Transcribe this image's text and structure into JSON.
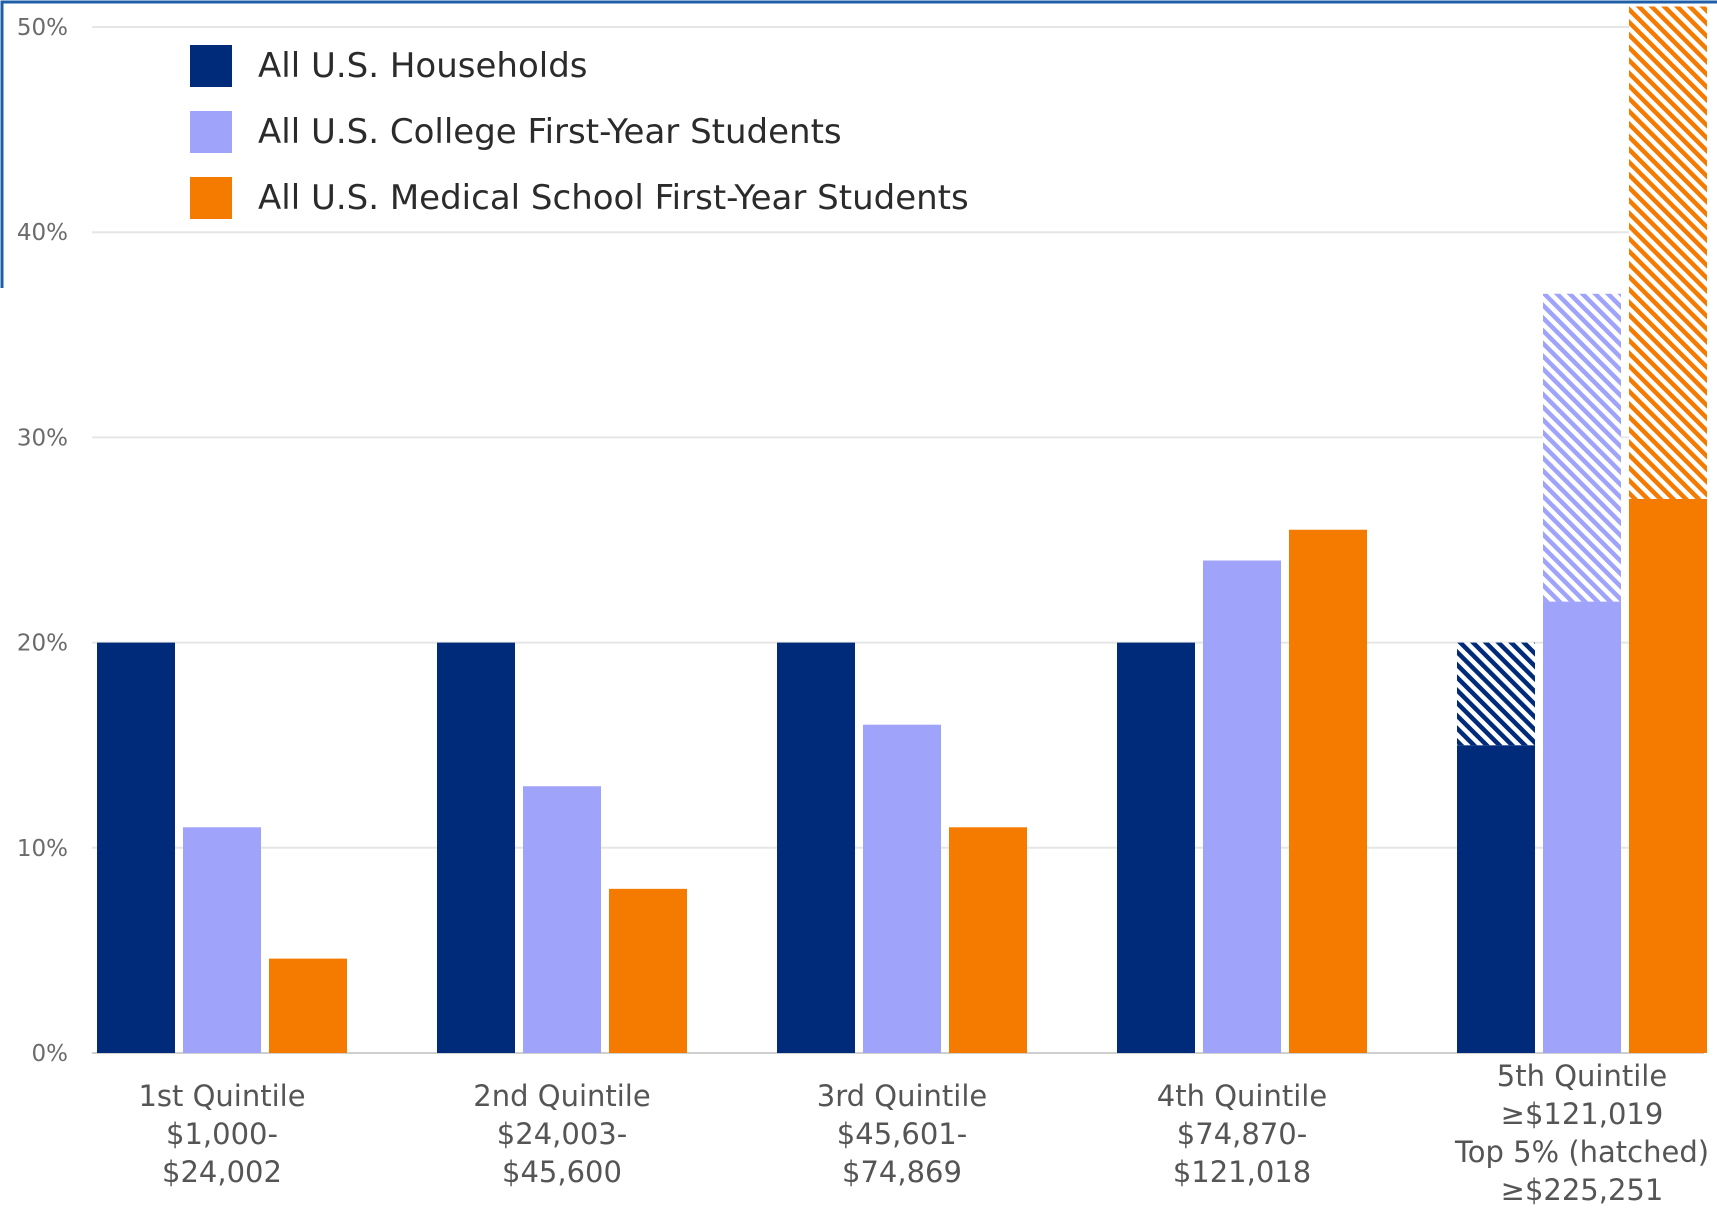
{
  "chart_data": {
    "type": "bar",
    "title": "",
    "xlabel": "",
    "ylabel": "",
    "ylim": [
      0,
      50
    ],
    "y_ticks": [
      "0%",
      "10%",
      "20%",
      "30%",
      "40%",
      "50%"
    ],
    "y_tick_values": [
      0,
      10,
      20,
      30,
      40,
      50
    ],
    "grid": true,
    "legend_position": "top-left",
    "categories": [
      [
        "1st Quintile",
        "$1,000-",
        "$24,002"
      ],
      [
        "2nd Quintile",
        "$24,003-",
        "$45,600"
      ],
      [
        "3rd Quintile",
        "$45,601-",
        "$74,869"
      ],
      [
        "4th Quintile",
        "$74,870-",
        "$121,018"
      ],
      [
        "5th Quintile",
        "≥$121,019",
        "Top 5% (hatched)",
        "≥$225,251"
      ]
    ],
    "series": [
      {
        "name": "All U.S. Households",
        "color": "#002a7a",
        "values": [
          20,
          20,
          20,
          20,
          20
        ],
        "top5_hatched": [
          null,
          null,
          null,
          null,
          5
        ]
      },
      {
        "name": "All U.S. College First-Year Students",
        "color": "#9fa3fa",
        "values": [
          11,
          13,
          16,
          24,
          37
        ],
        "top5_hatched": [
          null,
          null,
          null,
          null,
          15
        ]
      },
      {
        "name": "All U.S. Medical School First-Year Students",
        "color": "#f57a00",
        "values": [
          4.6,
          8,
          11,
          25.5,
          51
        ],
        "top5_hatched": [
          null,
          null,
          null,
          null,
          24
        ]
      }
    ]
  }
}
